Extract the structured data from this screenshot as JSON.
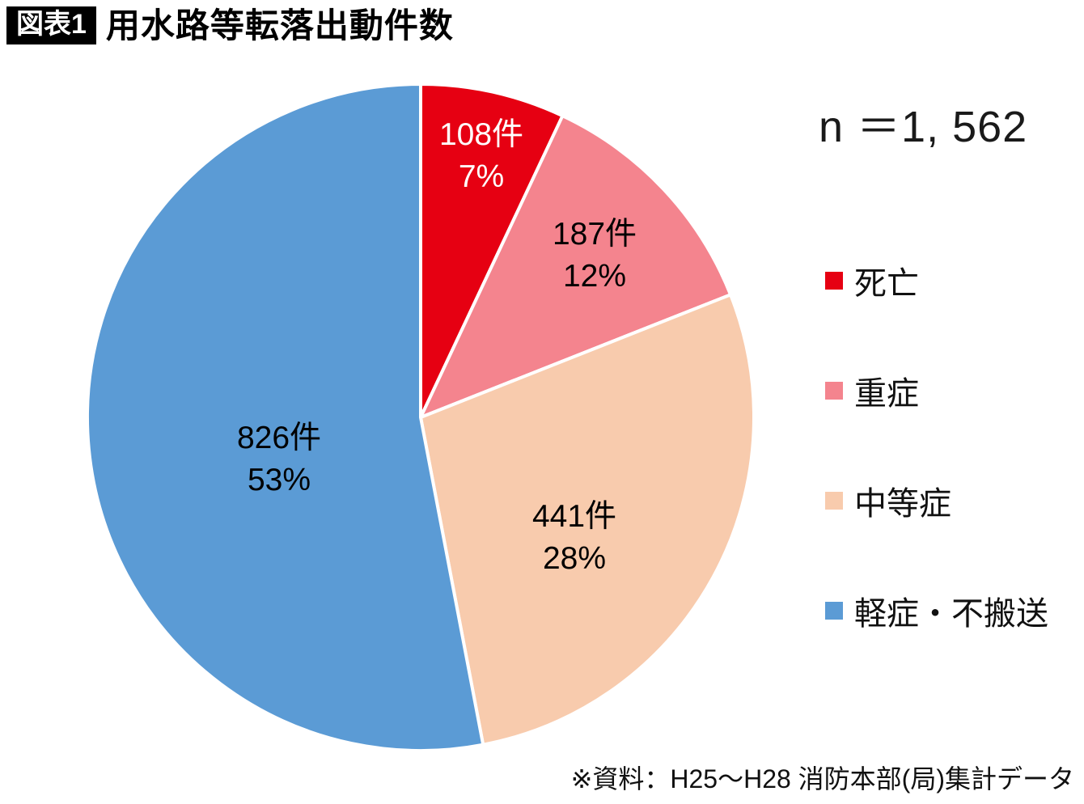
{
  "header": {
    "badge": "図表1",
    "title": "用水路等転落出動件数"
  },
  "footer": {
    "source": "※資料：H25～H28 消防本部(局)集計データ"
  },
  "chart_data": {
    "type": "pie",
    "title": "用水路等転落出動件数",
    "n": 1562,
    "n_label": "n ＝1, 562",
    "start_angle_deg": -90,
    "direction": "clockwise",
    "legend_position": "right",
    "slices": [
      {
        "name": "死亡",
        "count": 108,
        "percent": 7,
        "count_label": "108件",
        "percent_label": "7%",
        "color": "#e60012",
        "label_color": "#ffffff",
        "label_offset": [
          75,
          -327
        ]
      },
      {
        "name": "重症",
        "count": 187,
        "percent": 12,
        "count_label": "187件",
        "percent_label": "12%",
        "color": "#f4848e",
        "label_color": "#000000",
        "label_offset": [
          215,
          -204
        ]
      },
      {
        "name": "中等症",
        "count": 441,
        "percent": 28,
        "count_label": "441件",
        "percent_label": "28%",
        "color": "#f8cbad",
        "label_color": "#000000",
        "label_offset": [
          190,
          145
        ]
      },
      {
        "name": "軽症・不搬送",
        "count": 826,
        "percent": 53,
        "count_label": "826件",
        "percent_label": "53%",
        "color": "#5b9bd5",
        "label_color": "#000000",
        "label_offset": [
          -175,
          48
        ]
      }
    ]
  }
}
